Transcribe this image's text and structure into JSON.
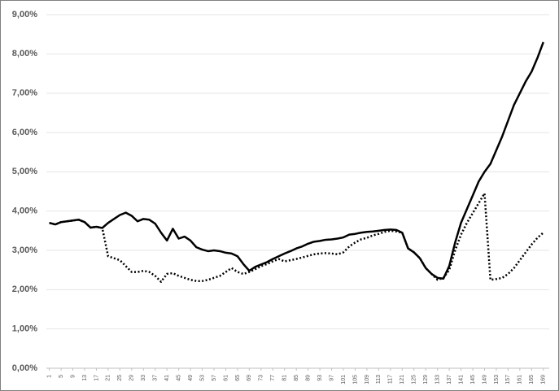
{
  "chart_data": {
    "type": "line",
    "x": [
      1,
      3,
      5,
      7,
      9,
      11,
      13,
      15,
      17,
      19,
      21,
      23,
      25,
      27,
      29,
      31,
      33,
      35,
      37,
      39,
      41,
      43,
      45,
      47,
      49,
      51,
      53,
      55,
      57,
      59,
      61,
      63,
      65,
      67,
      69,
      71,
      73,
      75,
      77,
      79,
      81,
      83,
      85,
      87,
      89,
      91,
      93,
      95,
      97,
      99,
      101,
      103,
      105,
      107,
      109,
      111,
      113,
      115,
      117,
      119,
      121,
      123,
      125,
      127,
      129,
      131,
      133,
      135,
      137,
      139,
      141,
      143,
      145,
      147,
      149,
      151,
      153,
      155,
      157,
      159,
      161,
      163,
      165,
      167,
      169
    ],
    "series": [
      {
        "color": "#000000",
        "dash": "solid",
        "values": [
          3.7,
          3.66,
          3.72,
          3.74,
          3.76,
          3.78,
          3.72,
          3.58,
          3.6,
          3.57,
          3.7,
          3.8,
          3.9,
          3.96,
          3.88,
          3.74,
          3.8,
          3.78,
          3.68,
          3.45,
          3.25,
          3.55,
          3.3,
          3.35,
          3.25,
          3.08,
          3.02,
          2.98,
          3.0,
          2.98,
          2.94,
          2.92,
          2.85,
          2.65,
          2.48,
          2.58,
          2.64,
          2.7,
          2.78,
          2.85,
          2.92,
          2.98,
          3.05,
          3.1,
          3.17,
          3.22,
          3.24,
          3.27,
          3.28,
          3.3,
          3.33,
          3.4,
          3.42,
          3.45,
          3.47,
          3.48,
          3.5,
          3.52,
          3.53,
          3.52,
          3.45,
          3.05,
          2.95,
          2.8,
          2.55,
          2.4,
          2.3,
          2.28,
          2.6,
          3.2,
          3.7,
          4.05,
          4.4,
          4.75,
          5.0,
          5.2,
          5.55,
          5.9,
          6.3,
          6.7,
          7.0,
          7.3,
          7.55,
          7.9,
          8.3
        ]
      },
      {
        "color": "#000000",
        "dash": "dotted",
        "values": [
          3.7,
          3.66,
          3.72,
          3.74,
          3.76,
          3.78,
          3.72,
          3.58,
          3.6,
          3.57,
          2.85,
          2.8,
          2.75,
          2.6,
          2.45,
          2.45,
          2.48,
          2.45,
          2.35,
          2.2,
          2.4,
          2.42,
          2.35,
          2.3,
          2.25,
          2.22,
          2.22,
          2.25,
          2.3,
          2.35,
          2.45,
          2.55,
          2.45,
          2.4,
          2.45,
          2.52,
          2.6,
          2.65,
          2.72,
          2.78,
          2.72,
          2.75,
          2.78,
          2.82,
          2.86,
          2.9,
          2.92,
          2.93,
          2.92,
          2.9,
          2.95,
          3.1,
          3.2,
          3.28,
          3.32,
          3.38,
          3.42,
          3.47,
          3.5,
          3.48,
          3.45,
          3.05,
          2.95,
          2.8,
          2.55,
          2.4,
          2.25,
          2.3,
          2.5,
          3.0,
          3.4,
          3.7,
          3.95,
          4.2,
          4.45,
          2.25,
          2.27,
          2.3,
          2.4,
          2.55,
          2.75,
          2.95,
          3.15,
          3.32,
          3.45
        ]
      }
    ],
    "xlim": [
      0,
      171
    ],
    "xticks": [
      1,
      5,
      9,
      13,
      17,
      21,
      25,
      29,
      33,
      37,
      41,
      45,
      49,
      53,
      57,
      61,
      65,
      69,
      73,
      77,
      81,
      85,
      89,
      93,
      97,
      101,
      105,
      109,
      113,
      117,
      121,
      125,
      129,
      133,
      137,
      141,
      145,
      149,
      153,
      157,
      161,
      165,
      169
    ],
    "ylim": [
      0,
      9
    ],
    "yticks": [
      {
        "value": 0,
        "label": "0,00%"
      },
      {
        "value": 1,
        "label": "1,00%"
      },
      {
        "value": 2,
        "label": "2,00%"
      },
      {
        "value": 3,
        "label": "3,00%"
      },
      {
        "value": 4,
        "label": "4,00%"
      },
      {
        "value": 5,
        "label": "5,00%"
      },
      {
        "value": 6,
        "label": "6,00%"
      },
      {
        "value": 7,
        "label": "7,00%"
      },
      {
        "value": 8,
        "label": "8,00%"
      },
      {
        "value": 9,
        "label": "9,00%"
      }
    ],
    "grid": true
  }
}
